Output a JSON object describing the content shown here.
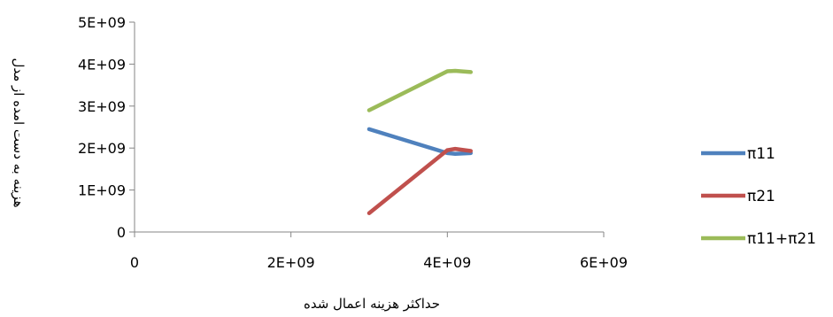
{
  "chart_data": {
    "type": "line",
    "xlabel": "حداکثر هزینه اعمال شده",
    "ylabel": "هزینه به دست امده از مدل",
    "xlim": [
      0,
      6000000000
    ],
    "ylim": [
      0,
      5000000000
    ],
    "x_ticks": [
      0,
      2000000000,
      4000000000,
      6000000000
    ],
    "x_tick_labels": [
      "0",
      "2E+09",
      "4E+09",
      "6E+09"
    ],
    "y_ticks": [
      0,
      1000000000,
      2000000000,
      3000000000,
      4000000000,
      5000000000
    ],
    "y_tick_labels": [
      "0",
      "1E+09",
      "2E+09",
      "3E+09",
      "4E+09",
      "5E+09"
    ],
    "grid": false,
    "legend_position": "right",
    "series": [
      {
        "name": "π11",
        "color": "#4F81BD",
        "x": [
          3000000000,
          4000000000,
          4100000000,
          4300000000
        ],
        "y": [
          2450000000,
          1880000000,
          1860000000,
          1880000000
        ]
      },
      {
        "name": "π21",
        "color": "#C0504D",
        "x": [
          3000000000,
          4000000000,
          4100000000,
          4300000000
        ],
        "y": [
          450000000,
          1950000000,
          1980000000,
          1930000000
        ]
      },
      {
        "name": "π11+π21",
        "color": "#9BBB59",
        "x": [
          3000000000,
          4000000000,
          4100000000,
          4300000000
        ],
        "y": [
          2900000000,
          3830000000,
          3840000000,
          3810000000
        ]
      }
    ]
  }
}
